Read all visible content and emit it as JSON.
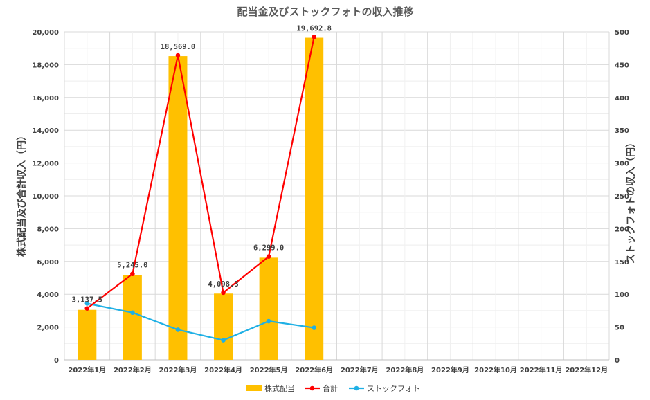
{
  "chart_data": {
    "type": "bar",
    "title": "配当金及びストックフォトの収入推移",
    "categories": [
      "2022年1月",
      "2022年2月",
      "2022年3月",
      "2022年4月",
      "2022年5月",
      "2022年6月",
      "2022年7月",
      "2022年8月",
      "2022年9月",
      "2022年10月",
      "2022年11月",
      "2022年12月"
    ],
    "ylabel": "株式配当及び合計収入（円）",
    "y2label": "ストックフォトの収入（円）",
    "ylim": [
      0,
      20000
    ],
    "y2lim": [
      0,
      500
    ],
    "y_ticks": [
      "0",
      "2,000",
      "4,000",
      "6,000",
      "8,000",
      "10,000",
      "12,000",
      "14,000",
      "16,000",
      "18,000",
      "20,000"
    ],
    "y2_ticks": [
      "0",
      "50",
      "100",
      "150",
      "200",
      "250",
      "300",
      "350",
      "400",
      "450",
      "500"
    ],
    "grid": true,
    "legend_position": "bottom",
    "series": [
      {
        "name": "株式配当",
        "type": "bar",
        "axis": "left",
        "color": "#FFC000",
        "values": [
          3050,
          5160,
          18520,
          4040,
          6230,
          19640,
          null,
          null,
          null,
          null,
          null,
          null
        ]
      },
      {
        "name": "合計",
        "type": "line",
        "axis": "left",
        "color": "#FF0000",
        "values": [
          3137.5,
          5245.0,
          18569.0,
          4098.3,
          6299.0,
          19692.8,
          null,
          null,
          null,
          null,
          null,
          null
        ],
        "labels": [
          "3,137.5",
          "5,245.0",
          "18,569.0",
          "4,098.3",
          "6,299.0",
          "19,692.8"
        ]
      },
      {
        "name": "ストックフォト",
        "type": "line",
        "axis": "right",
        "color": "#1FB0E5",
        "values": [
          86,
          72,
          46,
          30,
          59,
          49,
          null,
          null,
          null,
          null,
          null,
          null
        ]
      }
    ]
  }
}
